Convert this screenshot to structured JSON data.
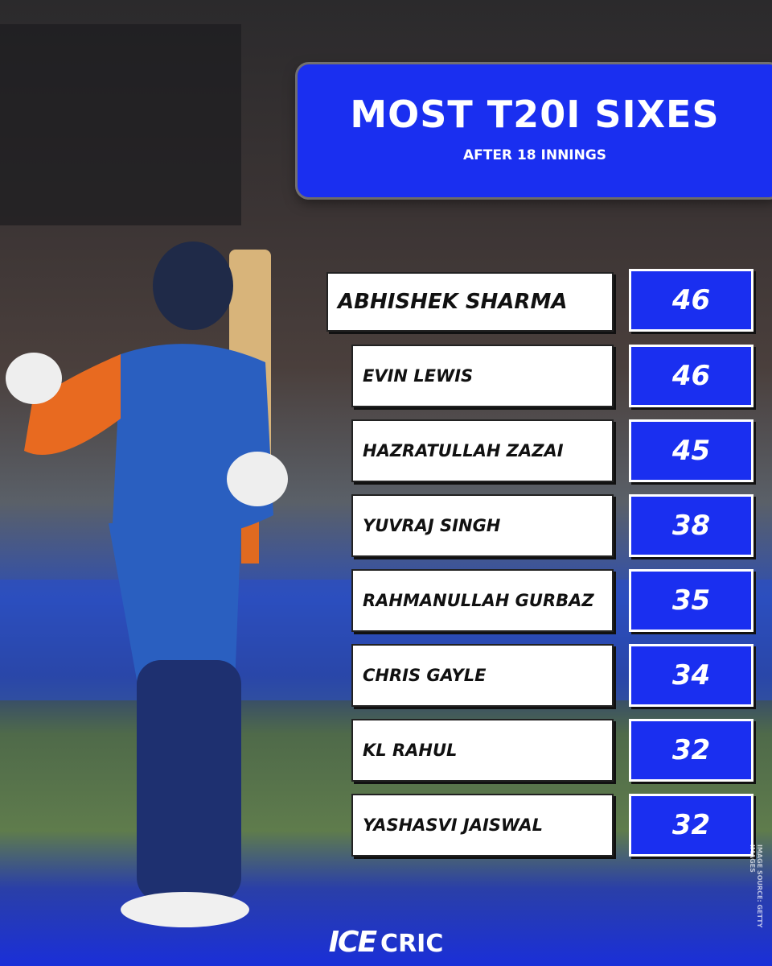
{
  "header": {
    "title": "MOST T20I SIXES",
    "subtitle": "AFTER 18 INNINGS"
  },
  "rows": [
    {
      "name": "ABHISHEK SHARMA",
      "value": "46"
    },
    {
      "name": "EVIN LEWIS",
      "value": "46"
    },
    {
      "name": "HAZRATULLAH ZAZAI",
      "value": "45"
    },
    {
      "name": "YUVRAJ SINGH",
      "value": "38"
    },
    {
      "name": "RAHMANULLAH GURBAZ",
      "value": "35"
    },
    {
      "name": "CHRIS GAYLE",
      "value": "34"
    },
    {
      "name": "KL RAHUL",
      "value": "32"
    },
    {
      "name": "YASHASVI JAISWAL",
      "value": "32"
    }
  ],
  "credit": "IMAGE SOURCE: GETTY IMAGES",
  "brand": {
    "mark": "ICE",
    "text": "CRIC"
  }
}
